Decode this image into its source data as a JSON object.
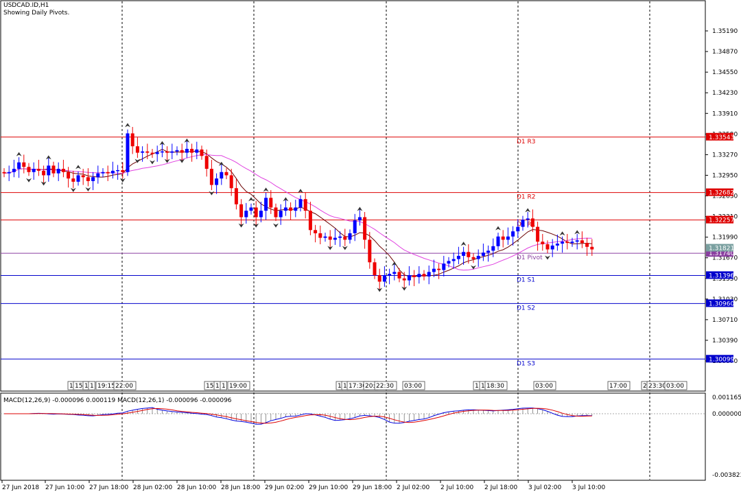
{
  "header": {
    "symbol_line": "USDCAD.ID,H1",
    "indicator_line": "Showing Daily Pivots."
  },
  "price_axis_ticks": [
    "1.35190",
    "1.34870",
    "1.34550",
    "1.34230",
    "1.33910",
    "1.33590",
    "1.33270",
    "1.32950",
    "1.32630",
    "1.32310",
    "1.31990",
    "1.31670",
    "1.31350",
    "1.31030",
    "1.30710",
    "1.30390",
    "1.30070"
  ],
  "pivots": [
    {
      "label": "D1 R3",
      "price_tag": "1.33543",
      "color": "#dd0000"
    },
    {
      "label": "D1 R2",
      "price_tag": "1.32682",
      "color": "#dd0000"
    },
    {
      "label": "D1 R1",
      "price_tag": "1.32257",
      "color": "#dd0000"
    },
    {
      "label": "D1 Pivot",
      "price_tag": "1.31740",
      "color": "#8a3fa0"
    },
    {
      "label": "D1 S1",
      "price_tag": "1.31396",
      "color": "#0000cc"
    },
    {
      "label": "D1 S2",
      "price_tag": "1.30960",
      "color": "#0000cc"
    },
    {
      "label": "D1 S3",
      "price_tag": "1.30099",
      "color": "#0000cc"
    }
  ],
  "current_price_tag": "1.31821",
  "session_labels": [
    "1",
    "15:",
    "1",
    "1",
    "19:15",
    "22:00",
    "15:",
    "1",
    "1",
    "19:00",
    "1",
    "1",
    "17:30",
    "20:",
    "22:30",
    "03:00",
    "1",
    "1",
    "18:30",
    "03:00",
    "17:00",
    "2",
    "23:30",
    "03:00"
  ],
  "macd": {
    "label": "MACD(12,26,9) -0.000096 0.000119 MACD(12,26,1) -0.000096 -0.000096",
    "axis_ticks": [
      "0.001165",
      "0.000000",
      "-0.003823"
    ]
  },
  "time_axis": [
    "27 Jun 2018",
    "27 Jun 10:00",
    "27 Jun 18:00",
    "28 Jun 02:00",
    "28 Jun 10:00",
    "28 Jun 18:00",
    "29 Jun 02:00",
    "29 Jun 10:00",
    "29 Jun 18:00",
    "2 Jul 02:00",
    "2 Jul 10:00",
    "2 Jul 18:00",
    "3 Jul 02:00",
    "3 Jul 10:00"
  ],
  "chart_data": {
    "type": "candlestick",
    "symbol": "USDCAD.ID",
    "timeframe": "H1",
    "y_range": [
      1.299,
      1.3535
    ],
    "closes": [
      1.3298,
      1.33,
      1.3305,
      1.3315,
      1.3308,
      1.33,
      1.3305,
      1.3302,
      1.3295,
      1.331,
      1.3298,
      1.3305,
      1.33,
      1.329,
      1.3285,
      1.3295,
      1.3292,
      1.3286,
      1.3292,
      1.3298,
      1.33,
      1.3298,
      1.3302,
      1.3303,
      1.33,
      1.336,
      1.334,
      1.333,
      1.3332,
      1.333,
      1.3328,
      1.3331,
      1.3332,
      1.333,
      1.3332,
      1.3334,
      1.333,
      1.3336,
      1.333,
      1.3335,
      1.3325,
      1.3305,
      1.328,
      1.329,
      1.33,
      1.3295,
      1.3275,
      1.325,
      1.323,
      1.324,
      1.3245,
      1.323,
      1.324,
      1.326,
      1.3245,
      1.323,
      1.324,
      1.3245,
      1.324,
      1.3245,
      1.3258,
      1.324,
      1.321,
      1.3205,
      1.3198,
      1.32,
      1.3195,
      1.3198,
      1.32,
      1.3195,
      1.3205,
      1.3225,
      1.323,
      1.3195,
      1.316,
      1.314,
      1.313,
      1.314,
      1.3142,
      1.3145,
      1.3135,
      1.3132,
      1.314,
      1.3137,
      1.3142,
      1.3138,
      1.3145,
      1.315,
      1.3148,
      1.3158,
      1.3162,
      1.3165,
      1.317,
      1.3176,
      1.3168,
      1.3165,
      1.317,
      1.3175,
      1.3178,
      1.3185,
      1.32,
      1.3195,
      1.32,
      1.3208,
      1.3215,
      1.3226,
      1.3228,
      1.3215,
      1.3192,
      1.3188,
      1.318,
      1.3186,
      1.3189,
      1.3192,
      1.319,
      1.3192,
      1.3194,
      1.319,
      1.3184,
      1.318
    ]
  }
}
